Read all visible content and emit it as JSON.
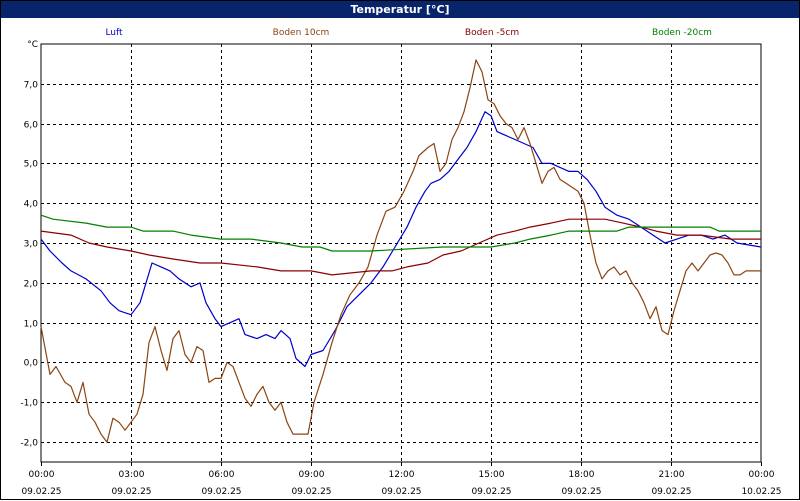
{
  "window": {
    "title": "Temperatur [°C]"
  },
  "chart_data": {
    "type": "line",
    "title": "Temperatur [°C]",
    "ylabel": "°C",
    "ylim": [
      -2.5,
      8.0
    ],
    "yticks": [
      -2.0,
      -1.0,
      0.0,
      1.0,
      2.0,
      3.0,
      4.0,
      5.0,
      6.0,
      7.0
    ],
    "ytick_labels": [
      "-2,0",
      "-1,0",
      "0,0",
      "1,0",
      "2,0",
      "3,0",
      "4,0",
      "5,0",
      "6,0",
      "7,0"
    ],
    "xlim": [
      0,
      24
    ],
    "xticks": [
      {
        "hour": 0,
        "time": "00:00",
        "date": "09.02.25"
      },
      {
        "hour": 3,
        "time": "03:00",
        "date": "09.02.25"
      },
      {
        "hour": 6,
        "time": "06:00",
        "date": "09.02.25"
      },
      {
        "hour": 9,
        "time": "09:00",
        "date": "09.02.25"
      },
      {
        "hour": 12,
        "time": "12:00",
        "date": "09.02.25"
      },
      {
        "hour": 15,
        "time": "15:00",
        "date": "09.02.25"
      },
      {
        "hour": 18,
        "time": "18:00",
        "date": "09.02.25"
      },
      {
        "hour": 21,
        "time": "21:00",
        "date": "09.02.25"
      },
      {
        "hour": 24,
        "time": "00:00",
        "date": "10.02.25"
      }
    ],
    "grid": true,
    "legend_position": "top",
    "series": [
      {
        "name": "Luft",
        "color": "#0000cc",
        "points": [
          [
            0,
            3.1
          ],
          [
            0.3,
            2.8
          ],
          [
            0.7,
            2.5
          ],
          [
            1.0,
            2.3
          ],
          [
            1.5,
            2.1
          ],
          [
            2.0,
            1.8
          ],
          [
            2.3,
            1.5
          ],
          [
            2.6,
            1.3
          ],
          [
            3.0,
            1.2
          ],
          [
            3.3,
            1.5
          ],
          [
            3.5,
            2.0
          ],
          [
            3.7,
            2.5
          ],
          [
            4.0,
            2.4
          ],
          [
            4.3,
            2.3
          ],
          [
            4.6,
            2.1
          ],
          [
            5.0,
            1.9
          ],
          [
            5.3,
            2.0
          ],
          [
            5.5,
            1.5
          ],
          [
            5.8,
            1.1
          ],
          [
            6.0,
            0.9
          ],
          [
            6.3,
            1.0
          ],
          [
            6.6,
            1.1
          ],
          [
            6.8,
            0.7
          ],
          [
            7.2,
            0.6
          ],
          [
            7.5,
            0.7
          ],
          [
            7.8,
            0.6
          ],
          [
            8.0,
            0.8
          ],
          [
            8.3,
            0.6
          ],
          [
            8.5,
            0.1
          ],
          [
            8.8,
            -0.1
          ],
          [
            9.0,
            0.2
          ],
          [
            9.4,
            0.3
          ],
          [
            9.8,
            0.8
          ],
          [
            10.2,
            1.4
          ],
          [
            10.6,
            1.7
          ],
          [
            11.0,
            2.0
          ],
          [
            11.4,
            2.4
          ],
          [
            11.8,
            2.9
          ],
          [
            12.2,
            3.4
          ],
          [
            12.5,
            3.9
          ],
          [
            12.8,
            4.3
          ],
          [
            13.0,
            4.5
          ],
          [
            13.3,
            4.6
          ],
          [
            13.6,
            4.8
          ],
          [
            13.9,
            5.1
          ],
          [
            14.2,
            5.4
          ],
          [
            14.5,
            5.8
          ],
          [
            14.8,
            6.3
          ],
          [
            15.0,
            6.2
          ],
          [
            15.2,
            5.8
          ],
          [
            15.5,
            5.7
          ],
          [
            15.8,
            5.6
          ],
          [
            16.1,
            5.5
          ],
          [
            16.4,
            5.4
          ],
          [
            16.7,
            5.0
          ],
          [
            17.0,
            5.0
          ],
          [
            17.3,
            4.9
          ],
          [
            17.6,
            4.8
          ],
          [
            17.9,
            4.8
          ],
          [
            18.2,
            4.6
          ],
          [
            18.5,
            4.3
          ],
          [
            18.8,
            3.9
          ],
          [
            19.2,
            3.7
          ],
          [
            19.6,
            3.6
          ],
          [
            20.0,
            3.4
          ],
          [
            20.4,
            3.2
          ],
          [
            20.8,
            3.0
          ],
          [
            21.2,
            3.1
          ],
          [
            21.6,
            3.2
          ],
          [
            22.0,
            3.2
          ],
          [
            22.4,
            3.1
          ],
          [
            22.8,
            3.2
          ],
          [
            23.2,
            3.0
          ],
          [
            23.6,
            2.95
          ],
          [
            24.0,
            2.9
          ]
        ]
      },
      {
        "name": "Boden 10cm",
        "color": "#8b4513",
        "points": [
          [
            0,
            0.9
          ],
          [
            0.3,
            -0.3
          ],
          [
            0.5,
            -0.1
          ],
          [
            0.8,
            -0.5
          ],
          [
            1.0,
            -0.6
          ],
          [
            1.2,
            -1.0
          ],
          [
            1.4,
            -0.5
          ],
          [
            1.6,
            -1.3
          ],
          [
            1.8,
            -1.5
          ],
          [
            2.0,
            -1.8
          ],
          [
            2.2,
            -2.0
          ],
          [
            2.4,
            -1.4
          ],
          [
            2.6,
            -1.5
          ],
          [
            2.8,
            -1.7
          ],
          [
            3.0,
            -1.5
          ],
          [
            3.2,
            -1.3
          ],
          [
            3.4,
            -0.8
          ],
          [
            3.6,
            0.5
          ],
          [
            3.8,
            0.9
          ],
          [
            4.0,
            0.3
          ],
          [
            4.2,
            -0.2
          ],
          [
            4.4,
            0.6
          ],
          [
            4.6,
            0.8
          ],
          [
            4.8,
            0.2
          ],
          [
            5.0,
            0.0
          ],
          [
            5.2,
            0.4
          ],
          [
            5.4,
            0.3
          ],
          [
            5.6,
            -0.5
          ],
          [
            5.8,
            -0.4
          ],
          [
            6.0,
            -0.4
          ],
          [
            6.2,
            0.0
          ],
          [
            6.4,
            -0.1
          ],
          [
            6.6,
            -0.5
          ],
          [
            6.8,
            -0.9
          ],
          [
            7.0,
            -1.1
          ],
          [
            7.2,
            -0.8
          ],
          [
            7.4,
            -0.6
          ],
          [
            7.6,
            -1.0
          ],
          [
            7.8,
            -1.2
          ],
          [
            8.0,
            -1.0
          ],
          [
            8.2,
            -1.5
          ],
          [
            8.4,
            -1.8
          ],
          [
            8.6,
            -1.8
          ],
          [
            8.9,
            -1.8
          ],
          [
            9.1,
            -1.0
          ],
          [
            9.4,
            -0.3
          ],
          [
            9.7,
            0.5
          ],
          [
            10.0,
            1.2
          ],
          [
            10.3,
            1.7
          ],
          [
            10.6,
            2.0
          ],
          [
            10.9,
            2.4
          ],
          [
            11.2,
            3.2
          ],
          [
            11.5,
            3.8
          ],
          [
            11.8,
            3.9
          ],
          [
            12.1,
            4.3
          ],
          [
            12.4,
            4.8
          ],
          [
            12.6,
            5.2
          ],
          [
            12.9,
            5.4
          ],
          [
            13.1,
            5.5
          ],
          [
            13.3,
            4.8
          ],
          [
            13.5,
            5.0
          ],
          [
            13.7,
            5.6
          ],
          [
            13.9,
            5.9
          ],
          [
            14.1,
            6.3
          ],
          [
            14.3,
            6.9
          ],
          [
            14.5,
            7.6
          ],
          [
            14.7,
            7.3
          ],
          [
            14.9,
            6.6
          ],
          [
            15.1,
            6.5
          ],
          [
            15.3,
            6.2
          ],
          [
            15.5,
            6.0
          ],
          [
            15.7,
            5.9
          ],
          [
            15.9,
            5.6
          ],
          [
            16.1,
            5.9
          ],
          [
            16.3,
            5.5
          ],
          [
            16.5,
            5.0
          ],
          [
            16.7,
            4.5
          ],
          [
            16.9,
            4.8
          ],
          [
            17.1,
            4.9
          ],
          [
            17.3,
            4.6
          ],
          [
            17.5,
            4.5
          ],
          [
            17.7,
            4.4
          ],
          [
            17.9,
            4.3
          ],
          [
            18.1,
            4.0
          ],
          [
            18.3,
            3.2
          ],
          [
            18.5,
            2.5
          ],
          [
            18.7,
            2.1
          ],
          [
            18.9,
            2.3
          ],
          [
            19.1,
            2.4
          ],
          [
            19.3,
            2.2
          ],
          [
            19.5,
            2.3
          ],
          [
            19.7,
            2.0
          ],
          [
            19.9,
            1.8
          ],
          [
            20.1,
            1.5
          ],
          [
            20.3,
            1.1
          ],
          [
            20.5,
            1.4
          ],
          [
            20.7,
            0.8
          ],
          [
            20.9,
            0.7
          ],
          [
            21.1,
            1.3
          ],
          [
            21.3,
            1.8
          ],
          [
            21.5,
            2.3
          ],
          [
            21.7,
            2.5
          ],
          [
            21.9,
            2.3
          ],
          [
            22.1,
            2.5
          ],
          [
            22.3,
            2.7
          ],
          [
            22.5,
            2.75
          ],
          [
            22.7,
            2.7
          ],
          [
            22.9,
            2.5
          ],
          [
            23.1,
            2.2
          ],
          [
            23.3,
            2.2
          ],
          [
            23.5,
            2.3
          ],
          [
            23.8,
            2.3
          ],
          [
            24.0,
            2.3
          ]
        ]
      },
      {
        "name": "Boden -5cm",
        "color": "#8b0000",
        "points": [
          [
            0,
            3.3
          ],
          [
            1.0,
            3.2
          ],
          [
            1.6,
            3.0
          ],
          [
            2.2,
            2.9
          ],
          [
            3.0,
            2.8
          ],
          [
            3.6,
            2.7
          ],
          [
            4.4,
            2.6
          ],
          [
            5.3,
            2.5
          ],
          [
            6.0,
            2.5
          ],
          [
            7.2,
            2.4
          ],
          [
            8.0,
            2.3
          ],
          [
            9.0,
            2.3
          ],
          [
            9.7,
            2.2
          ],
          [
            11.0,
            2.3
          ],
          [
            11.7,
            2.3
          ],
          [
            12.2,
            2.4
          ],
          [
            12.9,
            2.5
          ],
          [
            13.4,
            2.7
          ],
          [
            14.0,
            2.8
          ],
          [
            14.6,
            3.0
          ],
          [
            15.2,
            3.2
          ],
          [
            15.8,
            3.3
          ],
          [
            16.3,
            3.4
          ],
          [
            17.0,
            3.5
          ],
          [
            17.6,
            3.6
          ],
          [
            18.0,
            3.6
          ],
          [
            18.8,
            3.6
          ],
          [
            19.4,
            3.5
          ],
          [
            20.0,
            3.4
          ],
          [
            20.5,
            3.3
          ],
          [
            21.2,
            3.2
          ],
          [
            22.0,
            3.2
          ],
          [
            23.0,
            3.1
          ],
          [
            24.0,
            3.1
          ]
        ]
      },
      {
        "name": "Boden -20cm",
        "color": "#008000",
        "points": [
          [
            0,
            3.7
          ],
          [
            0.4,
            3.6
          ],
          [
            1.5,
            3.5
          ],
          [
            2.2,
            3.4
          ],
          [
            3.0,
            3.4
          ],
          [
            3.4,
            3.3
          ],
          [
            4.4,
            3.3
          ],
          [
            5.0,
            3.2
          ],
          [
            6.0,
            3.1
          ],
          [
            7.0,
            3.1
          ],
          [
            8.0,
            3.0
          ],
          [
            8.7,
            2.9
          ],
          [
            9.3,
            2.9
          ],
          [
            9.7,
            2.8
          ],
          [
            11.0,
            2.8
          ],
          [
            13.4,
            2.9
          ],
          [
            15.0,
            2.9
          ],
          [
            15.8,
            3.0
          ],
          [
            16.3,
            3.1
          ],
          [
            17.0,
            3.2
          ],
          [
            17.6,
            3.3
          ],
          [
            18.0,
            3.3
          ],
          [
            19.2,
            3.3
          ],
          [
            19.6,
            3.4
          ],
          [
            22.3,
            3.4
          ],
          [
            22.6,
            3.3
          ],
          [
            24.0,
            3.3
          ]
        ]
      }
    ]
  }
}
